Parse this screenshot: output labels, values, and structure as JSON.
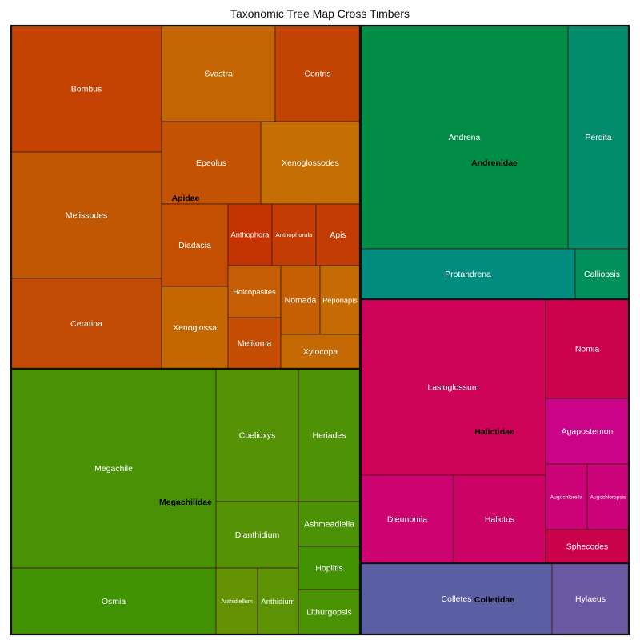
{
  "chart_data": {
    "type": "treemap",
    "title": "Taxonomic Tree Map Cross Timbers",
    "groups": [
      {
        "name": "Apidae",
        "items": [
          {
            "name": "Bombus",
            "color": "#c44303"
          },
          {
            "name": "Melissodes",
            "color": "#c25703"
          },
          {
            "name": "Ceratina",
            "color": "#c24b03"
          },
          {
            "name": "Svastra",
            "color": "#c46603"
          },
          {
            "name": "Centris",
            "color": "#c24303"
          },
          {
            "name": "Epeolus",
            "color": "#c45203"
          },
          {
            "name": "Xenoglossodes",
            "color": "#c46e03"
          },
          {
            "name": "Diadasia",
            "color": "#c44f03"
          },
          {
            "name": "Anthophora",
            "color": "#c43303"
          },
          {
            "name": "Anthophorula",
            "color": "#c23c03"
          },
          {
            "name": "Apis",
            "color": "#c23d03"
          },
          {
            "name": "Xenoglossa",
            "color": "#c46703"
          },
          {
            "name": "Holcopasites",
            "color": "#c45d03"
          },
          {
            "name": "Nomada",
            "color": "#c46003"
          },
          {
            "name": "Peponapis",
            "color": "#c46b03"
          },
          {
            "name": "Melitoma",
            "color": "#c44d03"
          },
          {
            "name": "Xylocopa",
            "color": "#c46903"
          }
        ]
      },
      {
        "name": "Andrenidae",
        "items": [
          {
            "name": "Andrena",
            "color": "#028d46"
          },
          {
            "name": "Perdita",
            "color": "#028c6c"
          },
          {
            "name": "Protandrena",
            "color": "#028c80"
          },
          {
            "name": "Calliopsis",
            "color": "#028f5d"
          }
        ]
      },
      {
        "name": "Megachilidae",
        "items": [
          {
            "name": "Megachile",
            "color": "#499206"
          },
          {
            "name": "Osmia",
            "color": "#419203"
          },
          {
            "name": "Coelioxys",
            "color": "#569206"
          },
          {
            "name": "Heriades",
            "color": "#4f9206"
          },
          {
            "name": "Dianthidium",
            "color": "#569206"
          },
          {
            "name": "Ashmeadiella",
            "color": "#4c9206"
          },
          {
            "name": "Hoplitis",
            "color": "#429203"
          },
          {
            "name": "Anthidiellum",
            "color": "#649203"
          },
          {
            "name": "Anthidium",
            "color": "#5c9203"
          },
          {
            "name": "Lithurgopsis",
            "color": "#489203"
          }
        ]
      },
      {
        "name": "Halictidae",
        "items": [
          {
            "name": "Lasioglossum",
            "color": "#cf0458"
          },
          {
            "name": "Nomia",
            "color": "#cc024e"
          },
          {
            "name": "Agapostemon",
            "color": "#cc0288"
          },
          {
            "name": "Dieunomia",
            "color": "#cc0270"
          },
          {
            "name": "Halictus",
            "color": "#cc0264"
          },
          {
            "name": "Augochlorella",
            "color": "#cc0277"
          },
          {
            "name": "Augochloropsis",
            "color": "#cc027b"
          },
          {
            "name": "Sphecodes",
            "color": "#c9024a"
          }
        ]
      },
      {
        "name": "Colletidae",
        "items": [
          {
            "name": "Colletes",
            "color": "#5a5ea2"
          },
          {
            "name": "Hylaeus",
            "color": "#6c58a2"
          }
        ]
      }
    ]
  }
}
